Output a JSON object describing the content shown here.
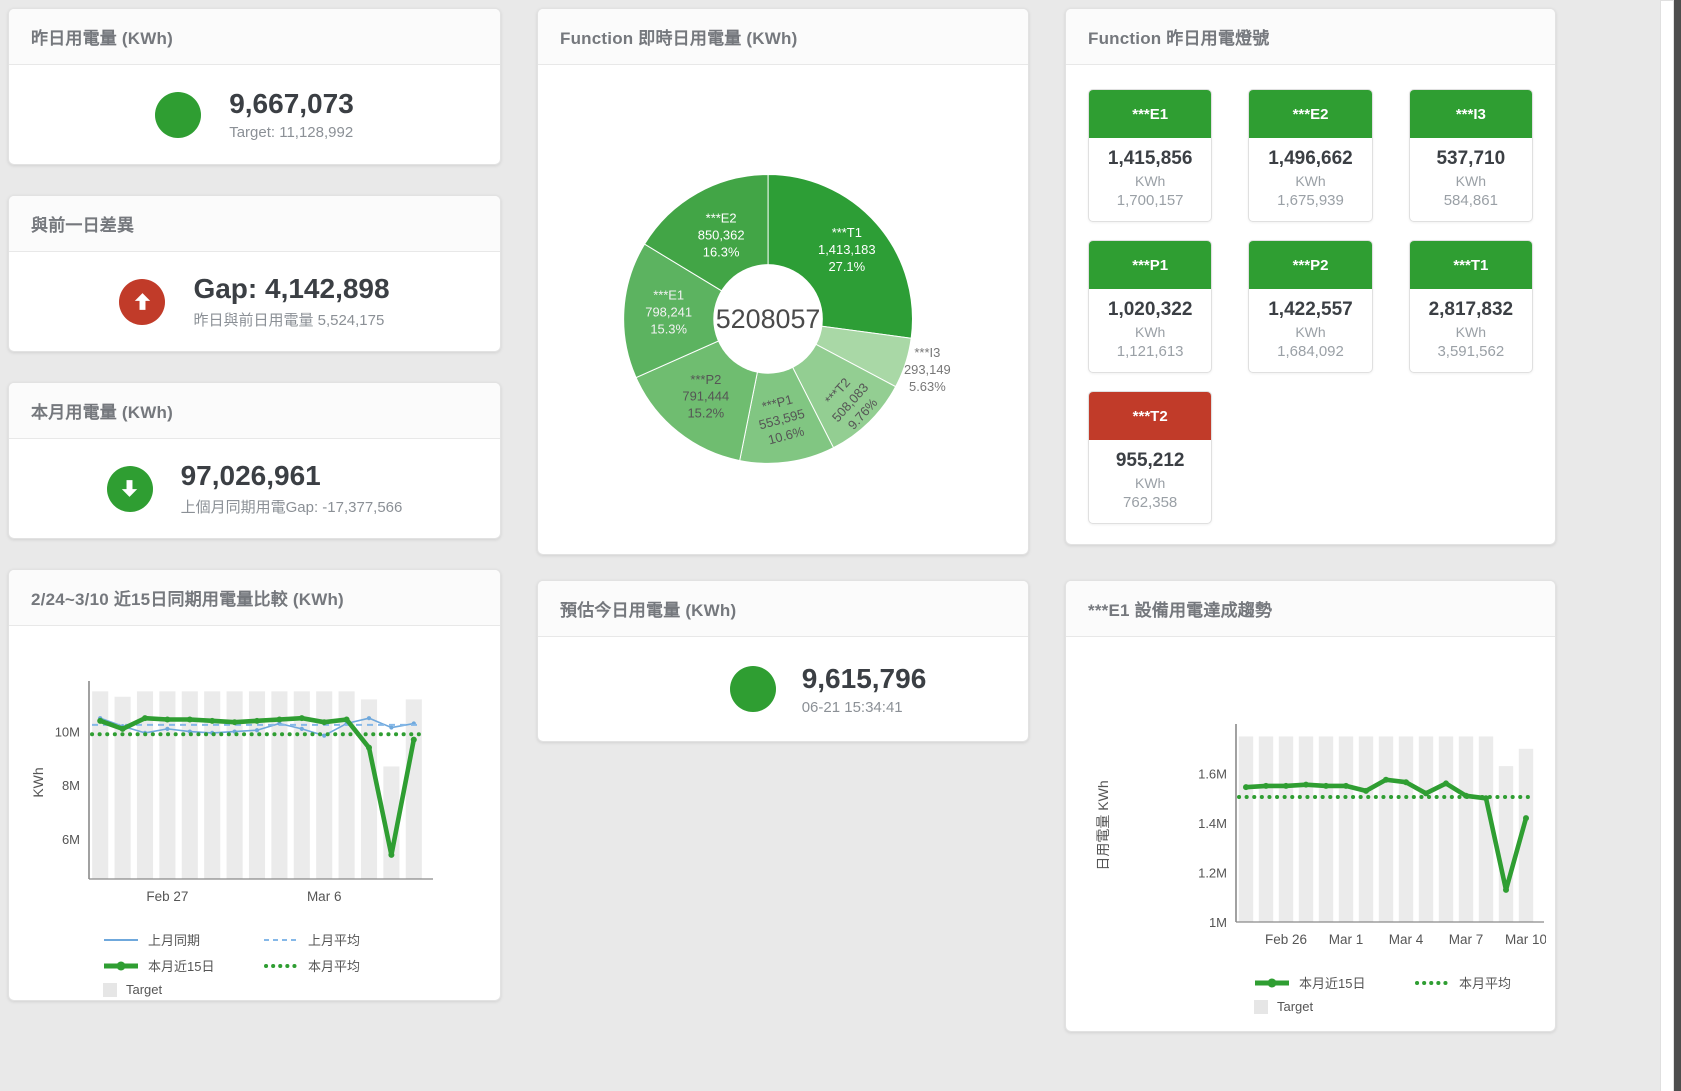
{
  "colors": {
    "green": "#2f9e32",
    "red": "#c13b29",
    "bar_gray": "#ebebeb",
    "blue_line": "#6fa8dc",
    "blue_dashed": "#85b8e8"
  },
  "cards": {
    "yesterday": {
      "title": "昨日用電量 (KWh)",
      "value": "9,667,073",
      "subtitle": "Target: 11,128,992",
      "status": "green"
    },
    "day_gap": {
      "title": "與前一日差異",
      "value": "Gap: 4,142,898",
      "subtitle": "昨日與前日用電量 5,524,175",
      "status": "red",
      "direction": "up"
    },
    "month": {
      "title": "本月用電量 (KWh)",
      "value": "97,026,961",
      "subtitle": "上個月同期用電Gap: -17,377,566",
      "status": "green",
      "direction": "down"
    },
    "today_estimate": {
      "title": "預估今日用電量 (KWh)",
      "value": "9,615,796",
      "timestamp": "06-21 15:34:41",
      "status": "green"
    }
  },
  "lamp_panel": {
    "title": "Function 昨日用電燈號",
    "tiles": [
      {
        "label": "***E1",
        "value": "1,415,856",
        "unit": "KWh",
        "target": "1,700,157",
        "color": "#2f9e32"
      },
      {
        "label": "***E2",
        "value": "1,496,662",
        "unit": "KWh",
        "target": "1,675,939",
        "color": "#2f9e32"
      },
      {
        "label": "***I3",
        "value": "537,710",
        "unit": "KWh",
        "target": "584,861",
        "color": "#2f9e32"
      },
      {
        "label": "***P1",
        "value": "1,020,322",
        "unit": "KWh",
        "target": "1,121,613",
        "color": "#2f9e32"
      },
      {
        "label": "***P2",
        "value": "1,422,557",
        "unit": "KWh",
        "target": "1,684,092",
        "color": "#2f9e32"
      },
      {
        "label": "***T1",
        "value": "2,817,832",
        "unit": "KWh",
        "target": "3,591,562",
        "color": "#2f9e32"
      },
      {
        "label": "***T2",
        "value": "955,212",
        "unit": "KWh",
        "target": "762,358",
        "color": "#c13b29"
      }
    ]
  },
  "chart_data": [
    {
      "id": "realtime_donut",
      "type": "pie",
      "title": "Function 即時日用電量 (KWh)",
      "center_total": "5208057",
      "legend_position": "none",
      "slices": [
        {
          "name": "***T1",
          "value": 1413183,
          "value_label": "1,413,183",
          "percent_label": "27.1%",
          "color": "#2d9e36",
          "text_color": "#ffffff"
        },
        {
          "name": "***I3",
          "value": 293149,
          "value_label": "293,149",
          "percent_label": "5.63%",
          "color": "#a9d8a6",
          "text_color": "#777777",
          "outside": true
        },
        {
          "name": "***T2",
          "value": 508083,
          "value_label": "508,083",
          "percent_label": "9.76%",
          "color": "#93ce92",
          "text_color": "#555555"
        },
        {
          "name": "***P1",
          "value": 553595,
          "value_label": "553,595",
          "percent_label": "10.6%",
          "color": "#81c682",
          "text_color": "#555555"
        },
        {
          "name": "***P2",
          "value": 791444,
          "value_label": "791,444",
          "percent_label": "15.2%",
          "color": "#6fbd70",
          "text_color": "#555555"
        },
        {
          "name": "***E1",
          "value": 798241,
          "value_label": "798,241",
          "percent_label": "15.3%",
          "color": "#5cb360",
          "text_color": "#f2f2f2"
        },
        {
          "name": "***E2",
          "value": 850362,
          "value_label": "850,362",
          "percent_label": "16.3%",
          "color": "#42a546",
          "text_color": "#ffffff"
        }
      ]
    },
    {
      "id": "period_compare",
      "type": "line",
      "title": "2/24~3/10 近15日同期用電量比較 (KWh)",
      "ylabel": "KWh",
      "ylim": [
        4.5,
        11.7
      ],
      "grid": false,
      "yticks": [
        {
          "v": 6,
          "label": "6M"
        },
        {
          "v": 8,
          "label": "8M"
        },
        {
          "v": 10,
          "label": "10M"
        }
      ],
      "xticks": [
        {
          "i": 3,
          "label": "Feb 27"
        },
        {
          "i": 10,
          "label": "Mar 6"
        }
      ],
      "target_bars": {
        "name": "Target",
        "color": "#ebebeb",
        "values": [
          11.5,
          11.3,
          11.5,
          11.5,
          11.5,
          11.5,
          11.5,
          11.5,
          11.5,
          11.5,
          11.5,
          11.5,
          11.2,
          8.7,
          11.2
        ]
      },
      "series": [
        {
          "name": "上月同期",
          "style": "line",
          "color": "#6fa8dc",
          "values": [
            10.5,
            10.2,
            9.95,
            10.1,
            10.0,
            9.95,
            10.0,
            10.05,
            10.3,
            10.1,
            9.85,
            10.3,
            10.5,
            10.15,
            10.3
          ]
        },
        {
          "name": "上月平均",
          "style": "dashed",
          "color": "#85b8e8",
          "const": 10.25
        },
        {
          "name": "本月近15日",
          "style": "thick",
          "color": "#2f9e32",
          "values": [
            10.4,
            10.1,
            10.5,
            10.45,
            10.45,
            10.4,
            10.35,
            10.4,
            10.45,
            10.5,
            10.35,
            10.45,
            9.4,
            5.4,
            9.7
          ]
        },
        {
          "name": "本月平均",
          "style": "dotted",
          "color": "#2f9e32",
          "const": 9.9
        }
      ],
      "legend_rows": [
        [
          "上月同期",
          "上月平均"
        ],
        [
          "本月近15日",
          "本月平均"
        ],
        [
          "Target"
        ]
      ]
    },
    {
      "id": "e1_trend",
      "type": "line",
      "title": "***E1 設備用電達成趨勢",
      "ylabel": "日用電量 KWh",
      "ylim": [
        1.0,
        1.78
      ],
      "grid": false,
      "yticks": [
        {
          "v": 1.0,
          "label": "1M"
        },
        {
          "v": 1.2,
          "label": "1.2M"
        },
        {
          "v": 1.4,
          "label": "1.4M"
        },
        {
          "v": 1.6,
          "label": "1.6M"
        }
      ],
      "xticks": [
        {
          "i": 2,
          "label": "Feb 26"
        },
        {
          "i": 5,
          "label": "Mar 1"
        },
        {
          "i": 8,
          "label": "Mar 4"
        },
        {
          "i": 11,
          "label": "Mar 7"
        },
        {
          "i": 14,
          "label": "Mar 10"
        }
      ],
      "target_bars": {
        "name": "Target",
        "color": "#ebebeb",
        "values": [
          1.75,
          1.75,
          1.75,
          1.75,
          1.75,
          1.75,
          1.75,
          1.75,
          1.75,
          1.75,
          1.75,
          1.75,
          1.75,
          1.63,
          1.7
        ]
      },
      "series": [
        {
          "name": "本月近15日",
          "style": "thick",
          "color": "#2f9e32",
          "values": [
            1.545,
            1.55,
            1.55,
            1.555,
            1.55,
            1.55,
            1.53,
            1.575,
            1.565,
            1.52,
            1.56,
            1.51,
            1.5,
            1.13,
            1.42
          ]
        },
        {
          "name": "本月平均",
          "style": "dotted",
          "color": "#2f9e32",
          "const": 1.505
        }
      ],
      "legend_rows": [
        [
          "本月近15日",
          "本月平均"
        ],
        [
          "Target"
        ]
      ]
    }
  ]
}
